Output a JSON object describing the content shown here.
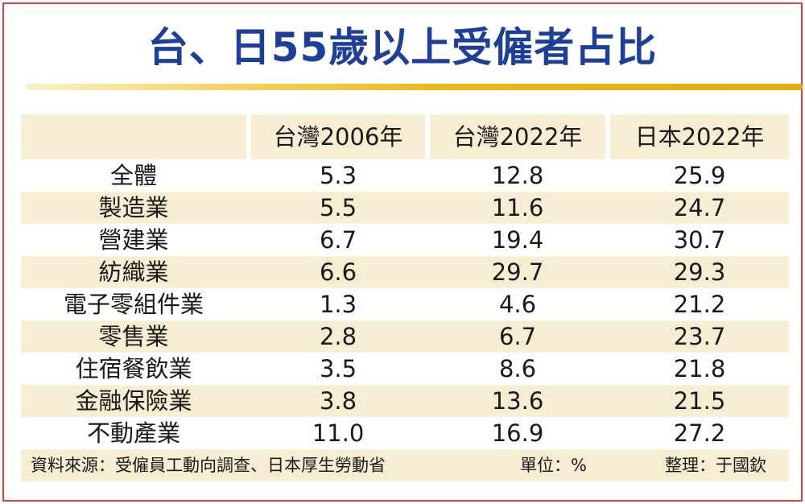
{
  "title": "台、日55歲以上受僱者占比",
  "table": {
    "columns": [
      "",
      "台灣2006年",
      "台灣2022年",
      "日本2022年"
    ],
    "rows": [
      {
        "label": "全體",
        "v1": "5.3",
        "v2": "12.8",
        "v3": "25.9"
      },
      {
        "label": "製造業",
        "v1": "5.5",
        "v2": "11.6",
        "v3": "24.7"
      },
      {
        "label": "營建業",
        "v1": "6.7",
        "v2": "19.4",
        "v3": "30.7"
      },
      {
        "label": "紡織業",
        "v1": "6.6",
        "v2": "29.7",
        "v3": "29.3"
      },
      {
        "label": "電子零組件業",
        "v1": "1.3",
        "v2": "4.6",
        "v3": "21.2"
      },
      {
        "label": "零售業",
        "v1": "2.8",
        "v2": "6.7",
        "v3": "23.7"
      },
      {
        "label": "住宿餐飲業",
        "v1": "3.5",
        "v2": "8.6",
        "v3": "21.8"
      },
      {
        "label": "金融保險業",
        "v1": "3.8",
        "v2": "13.6",
        "v3": "21.5"
      },
      {
        "label": "不動產業",
        "v1": "11.0",
        "v2": "16.9",
        "v3": "27.2"
      }
    ]
  },
  "footer": {
    "source": "資料來源：受僱員工動向調查、日本厚生勞動省",
    "unit": "單位：%",
    "editor": "整理：于國欽"
  },
  "colors": {
    "title": "#1d3f9a",
    "border": "#e0423b",
    "band": "#f6edd3",
    "rule_end": "#e5ad07"
  }
}
